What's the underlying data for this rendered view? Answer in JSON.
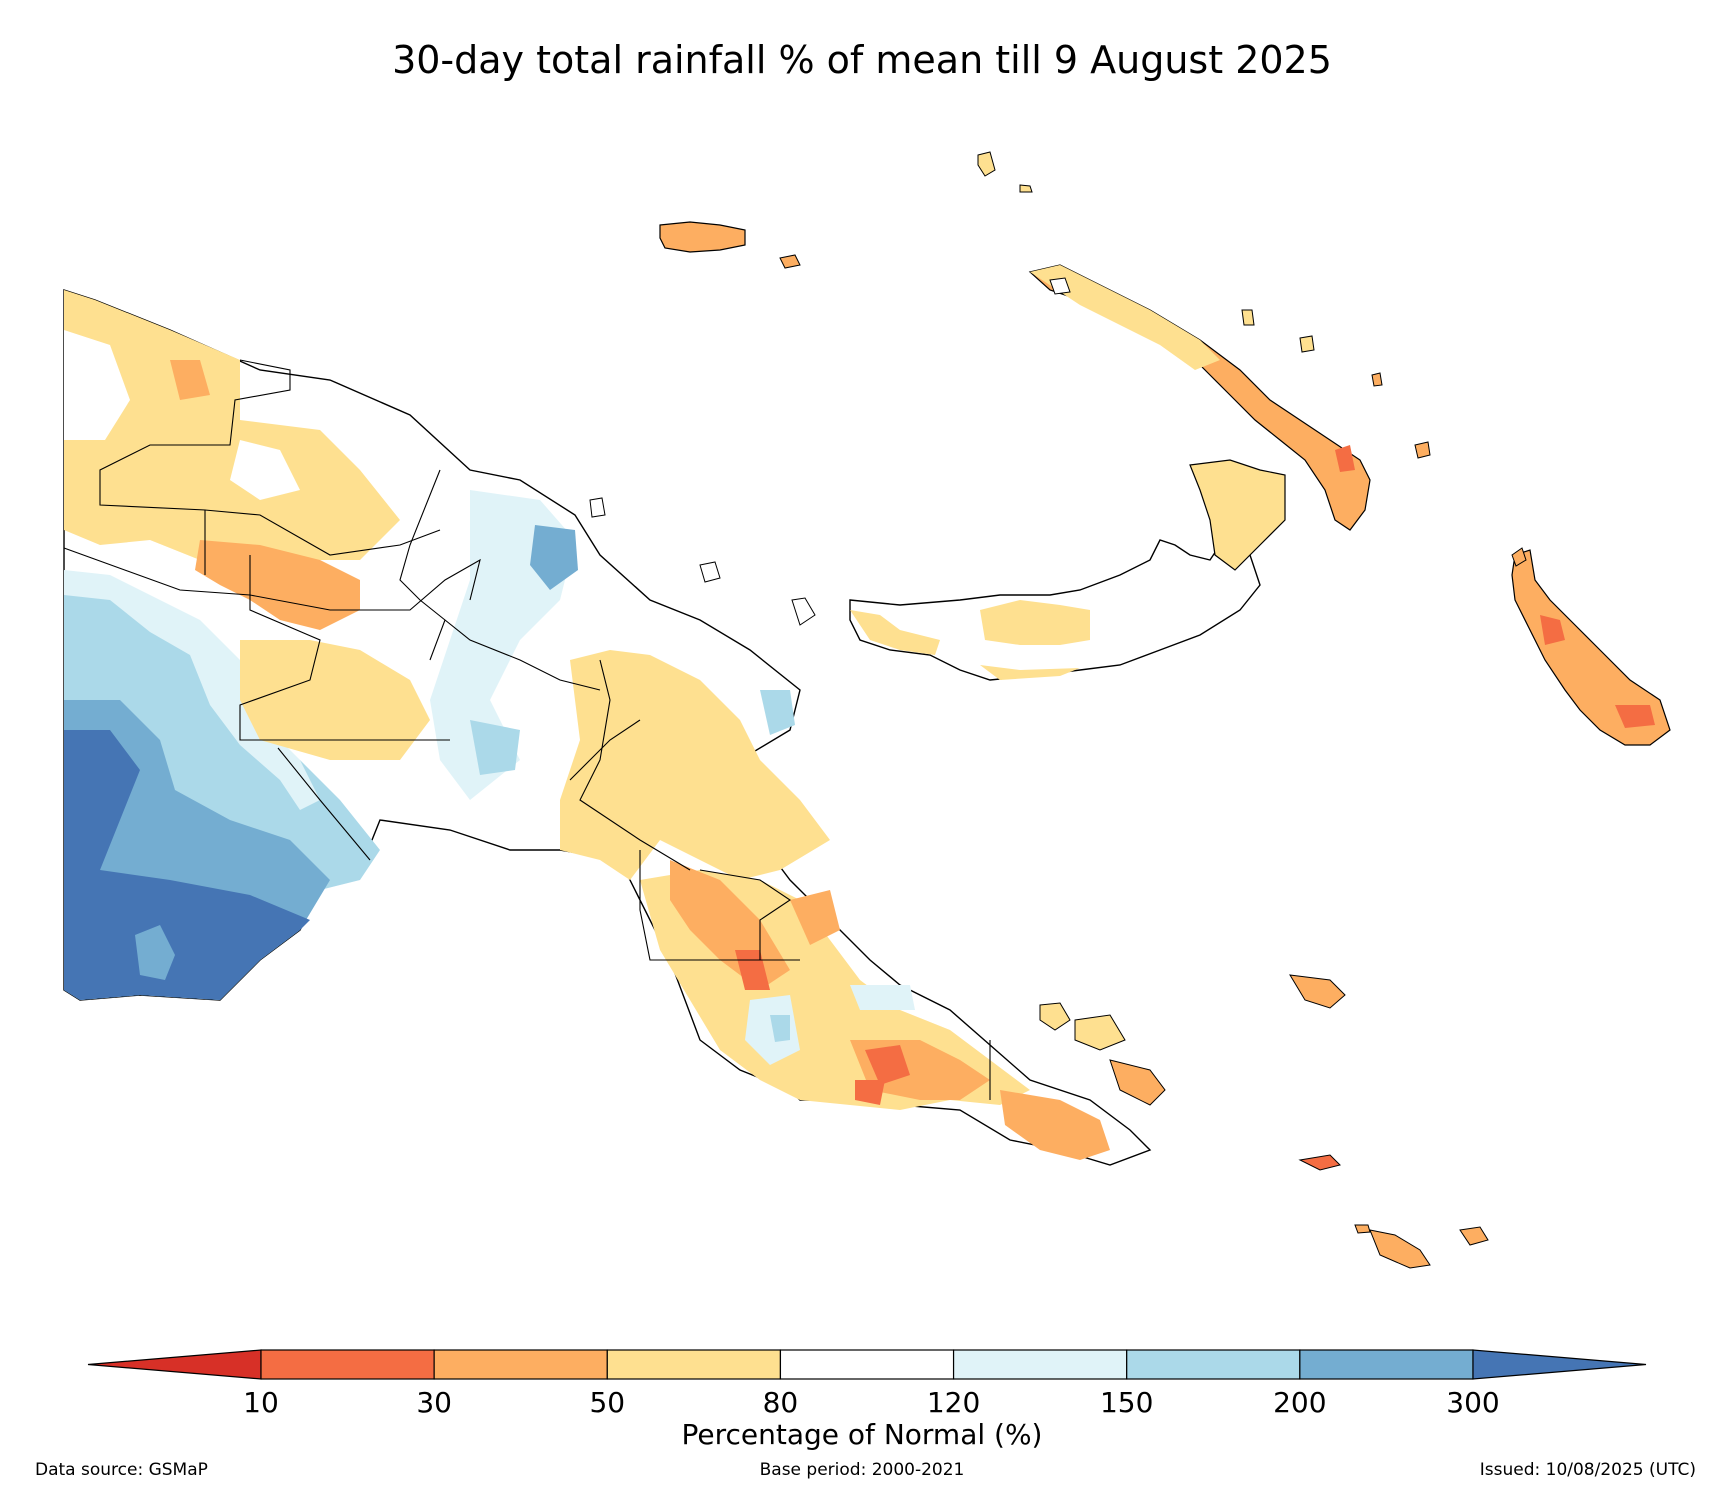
{
  "title": "30-day total rainfall % of mean till 9 August 2025",
  "legend": {
    "label": "Percentage of Normal (%)",
    "ticks": [
      "10",
      "30",
      "50",
      "80",
      "120",
      "150",
      "200",
      "300"
    ],
    "bins": [
      {
        "range": "<10",
        "color": "#d73027"
      },
      {
        "range": "10-30",
        "color": "#f46d43"
      },
      {
        "range": "30-50",
        "color": "#fdae61"
      },
      {
        "range": "50-80",
        "color": "#fee090"
      },
      {
        "range": "80-120",
        "color": "#ffffff"
      },
      {
        "range": "120-150",
        "color": "#e0f3f8"
      },
      {
        "range": "150-200",
        "color": "#abd9e9"
      },
      {
        "range": "200-300",
        "color": "#74add1"
      },
      {
        "range": ">300",
        "color": "#4575b4"
      }
    ]
  },
  "footer": {
    "source": "Data source: GSMaP",
    "base_period": "Base period: 2000-2021",
    "issued": "Issued: 10/08/2025 (UTC)"
  },
  "map_regions": {
    "western_south": "very wet (>300%)",
    "western_middle": "wet (150-300%)",
    "northern_coast": "dry (50-80%)",
    "highlands": "dry (30-80%)",
    "new_britain": "dry (50-80%)",
    "new_ireland": "dry (30-50%)",
    "bougainville": "dry (10-50%)",
    "papuan_peninsula": "dry (10-80%)"
  }
}
